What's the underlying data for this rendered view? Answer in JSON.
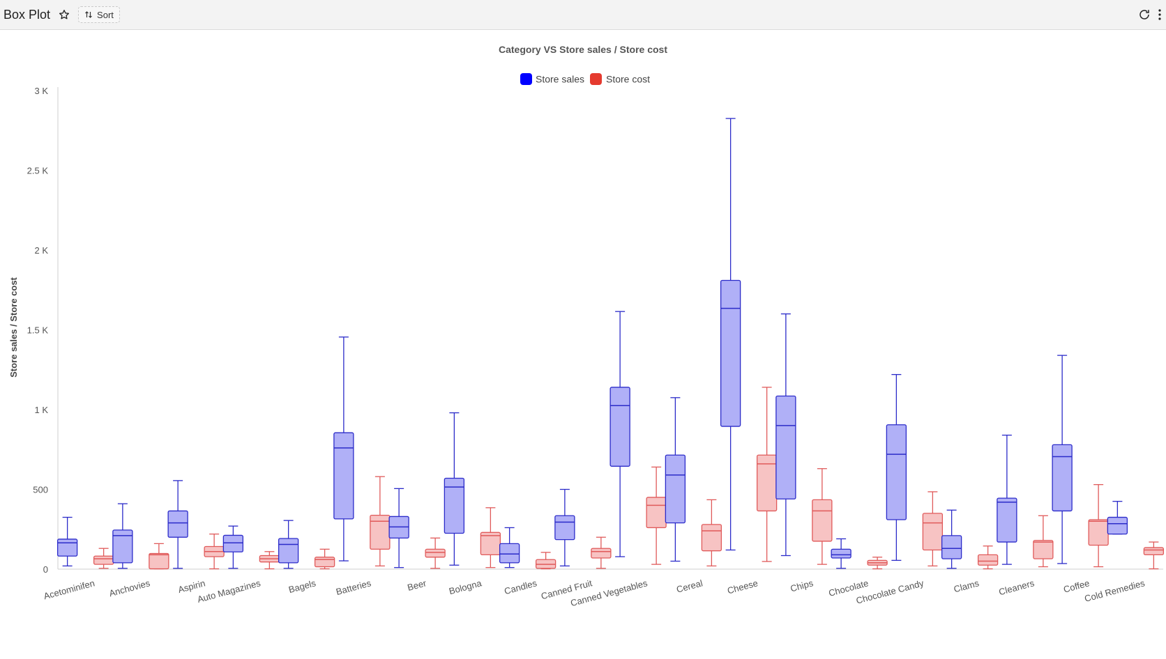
{
  "header": {
    "title": "Box Plot",
    "sort_label": "Sort",
    "icons": [
      "star-icon",
      "sort-icon",
      "refresh-icon",
      "more-vertical-icon"
    ]
  },
  "chart_data": {
    "type": "boxplot",
    "title": "Category VS Store sales / Store cost",
    "xlabel": "",
    "ylabel": "Store sales / Store cost",
    "ylim": [
      0,
      3000
    ],
    "yticks": [
      0,
      500,
      1000,
      1500,
      2000,
      2500,
      3000
    ],
    "ytick_labels": [
      "0",
      "500",
      "1 K",
      "1.5 K",
      "2 K",
      "2.5 K",
      "3 K"
    ],
    "legend_position": "top-center",
    "categories": [
      "Acetominifen",
      "Anchovies",
      "Aspirin",
      "Auto Magazines",
      "Bagels",
      "Batteries",
      "Beer",
      "Bologna",
      "Candles",
      "Canned Fruit",
      "Canned Vegetables",
      "Cereal",
      "Cheese",
      "Chips",
      "Chocolate",
      "Chocolate Candy",
      "Clams",
      "Cleaners",
      "Coffee",
      "Cold Remedies"
    ],
    "series": [
      {
        "name": "Store sales",
        "color": "#0000ff",
        "stroke": "#2b2bc9",
        "fill": "#b0b0f7",
        "boxes": [
          [
            20,
            82,
            165,
            188,
            325
          ],
          [
            5,
            40,
            210,
            245,
            410
          ],
          [
            5,
            200,
            290,
            365,
            555
          ],
          [
            5,
            108,
            165,
            212,
            270
          ],
          [
            5,
            40,
            155,
            192,
            305
          ],
          [
            52,
            315,
            760,
            855,
            1455
          ],
          [
            10,
            195,
            265,
            330,
            505
          ],
          [
            25,
            225,
            515,
            570,
            980
          ],
          [
            10,
            40,
            95,
            160,
            260
          ],
          [
            20,
            185,
            295,
            335,
            500
          ],
          [
            78,
            645,
            1025,
            1140,
            1615
          ],
          [
            50,
            290,
            590,
            715,
            1075
          ],
          [
            120,
            895,
            1635,
            1810,
            2825
          ],
          [
            85,
            440,
            900,
            1085,
            1600
          ],
          [
            5,
            70,
            90,
            125,
            190
          ],
          [
            55,
            310,
            720,
            905,
            1220
          ],
          [
            5,
            65,
            130,
            210,
            370
          ],
          [
            30,
            170,
            420,
            445,
            840
          ],
          [
            35,
            365,
            705,
            780,
            1340
          ],
          [
            220,
            220,
            285,
            325,
            425
          ]
        ]
      },
      {
        "name": "Store cost",
        "color": "#e53a2f",
        "stroke": "#e05a5a",
        "fill": "#f7c3c3",
        "boxes": [
          [
            5,
            30,
            65,
            82,
            130
          ],
          [
            2,
            2,
            90,
            98,
            160
          ],
          [
            2,
            78,
            110,
            142,
            220
          ],
          [
            2,
            45,
            65,
            85,
            110
          ],
          [
            2,
            15,
            60,
            75,
            125
          ],
          [
            20,
            125,
            300,
            338,
            580
          ],
          [
            5,
            75,
            105,
            125,
            195
          ],
          [
            10,
            90,
            210,
            230,
            385
          ],
          [
            2,
            5,
            30,
            60,
            105
          ],
          [
            5,
            70,
            110,
            130,
            200
          ],
          [
            30,
            260,
            400,
            450,
            640
          ],
          [
            20,
            115,
            240,
            280,
            435
          ],
          [
            48,
            365,
            660,
            715,
            1140
          ],
          [
            30,
            175,
            365,
            435,
            630
          ],
          [
            2,
            25,
            40,
            55,
            75
          ],
          [
            20,
            120,
            290,
            350,
            485
          ],
          [
            2,
            25,
            50,
            90,
            145
          ],
          [
            15,
            65,
            170,
            180,
            335
          ],
          [
            15,
            150,
            300,
            310,
            530
          ],
          [
            2,
            90,
            120,
            135,
            170
          ]
        ]
      }
    ]
  }
}
